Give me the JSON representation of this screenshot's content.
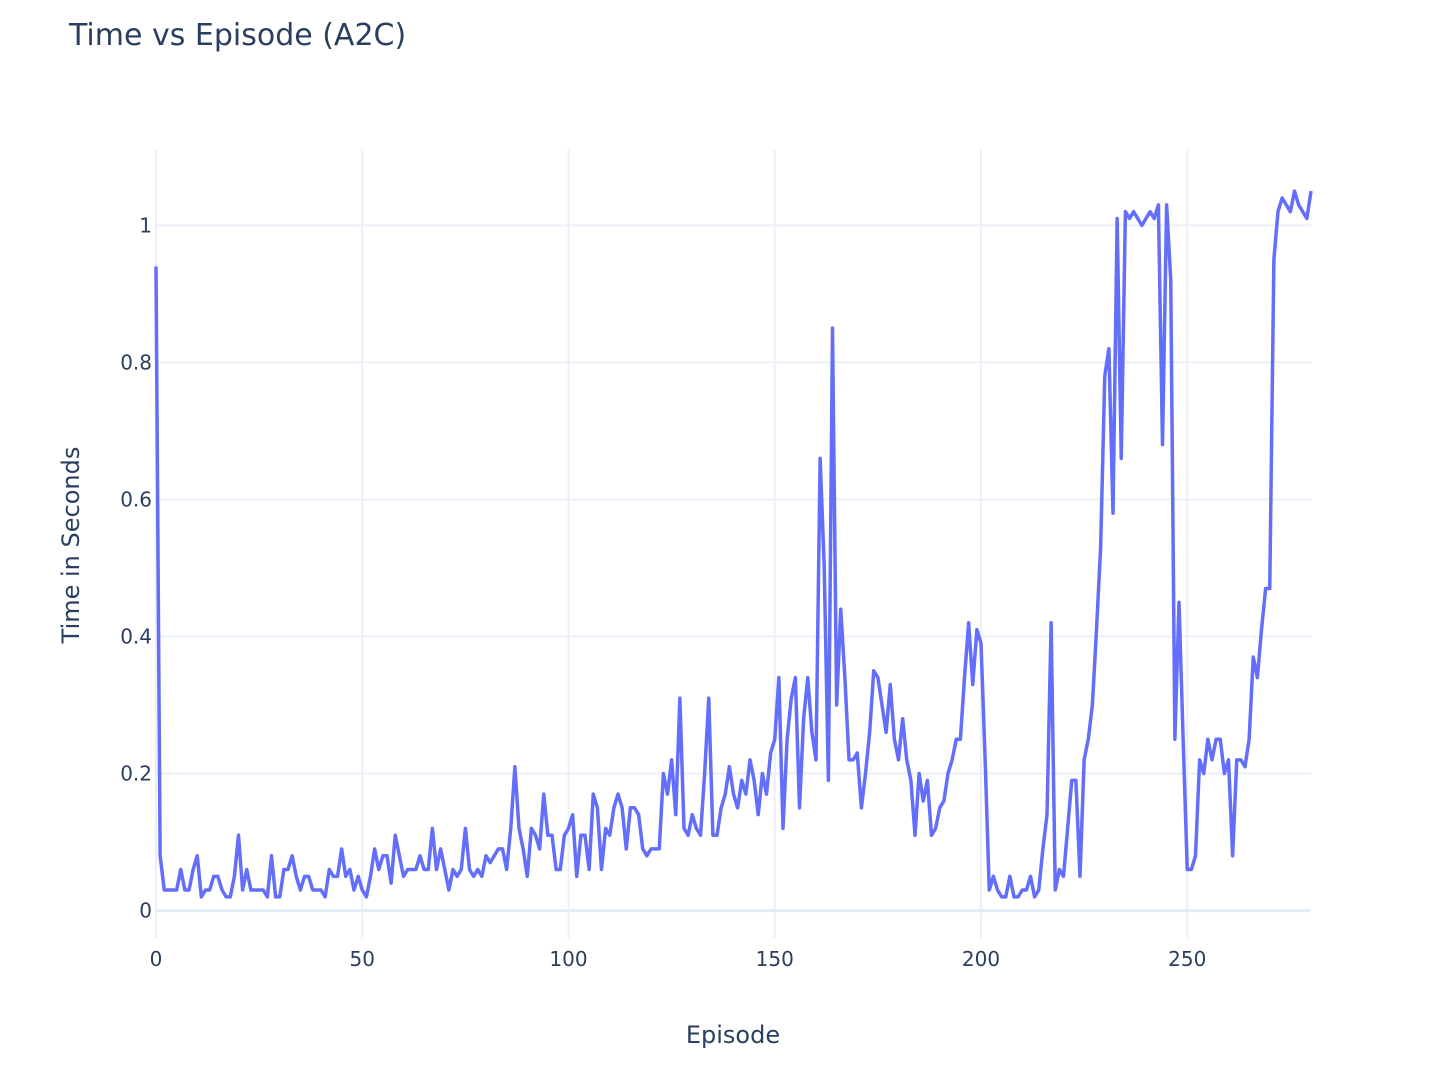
{
  "chart_data": {
    "type": "line",
    "title": "Time vs Episode (A2C)",
    "xlabel": "Episode",
    "ylabel": "Time in Seconds",
    "xlim": [
      0,
      280
    ],
    "ylim": [
      -0.04,
      1.11
    ],
    "grid": true,
    "line_color": "#636efa",
    "x_ticks": [
      0,
      50,
      100,
      150,
      200,
      250
    ],
    "x_tick_labels": [
      "0",
      "50",
      "100",
      "150",
      "200",
      "250"
    ],
    "y_ticks": [
      0,
      0.2,
      0.4,
      0.6,
      0.8,
      1
    ],
    "y_tick_labels": [
      "0",
      "0.2",
      "0.4",
      "0.6",
      "0.8",
      "1"
    ],
    "series": [
      {
        "values": [
          0.94,
          0.08,
          0.03,
          0.03,
          0.03,
          0.03,
          0.06,
          0.03,
          0.03,
          0.06,
          0.08,
          0.02,
          0.03,
          0.03,
          0.05,
          0.05,
          0.03,
          0.02,
          0.02,
          0.05,
          0.11,
          0.03,
          0.06,
          0.03,
          0.03,
          0.03,
          0.03,
          0.02,
          0.08,
          0.02,
          0.02,
          0.06,
          0.06,
          0.08,
          0.05,
          0.03,
          0.05,
          0.05,
          0.03,
          0.03,
          0.03,
          0.02,
          0.06,
          0.05,
          0.05,
          0.09,
          0.05,
          0.06,
          0.03,
          0.05,
          0.03,
          0.02,
          0.05,
          0.09,
          0.06,
          0.08,
          0.08,
          0.04,
          0.11,
          0.08,
          0.05,
          0.06,
          0.06,
          0.06,
          0.08,
          0.06,
          0.06,
          0.12,
          0.06,
          0.09,
          0.06,
          0.03,
          0.06,
          0.05,
          0.06,
          0.12,
          0.06,
          0.05,
          0.06,
          0.05,
          0.08,
          0.07,
          0.08,
          0.09,
          0.09,
          0.06,
          0.12,
          0.21,
          0.12,
          0.09,
          0.05,
          0.12,
          0.11,
          0.09,
          0.17,
          0.11,
          0.11,
          0.06,
          0.06,
          0.11,
          0.12,
          0.14,
          0.05,
          0.11,
          0.11,
          0.06,
          0.17,
          0.15,
          0.06,
          0.12,
          0.11,
          0.15,
          0.17,
          0.15,
          0.09,
          0.15,
          0.15,
          0.14,
          0.09,
          0.08,
          0.09,
          0.09,
          0.09,
          0.2,
          0.17,
          0.22,
          0.14,
          0.31,
          0.12,
          0.11,
          0.14,
          0.12,
          0.11,
          0.2,
          0.31,
          0.11,
          0.11,
          0.15,
          0.17,
          0.21,
          0.17,
          0.15,
          0.19,
          0.17,
          0.22,
          0.19,
          0.14,
          0.2,
          0.17,
          0.23,
          0.25,
          0.34,
          0.12,
          0.25,
          0.31,
          0.34,
          0.15,
          0.28,
          0.34,
          0.26,
          0.22,
          0.66,
          0.5,
          0.19,
          0.85,
          0.3,
          0.44,
          0.34,
          0.22,
          0.22,
          0.23,
          0.15,
          0.2,
          0.26,
          0.35,
          0.34,
          0.3,
          0.26,
          0.33,
          0.25,
          0.22,
          0.28,
          0.22,
          0.19,
          0.11,
          0.2,
          0.16,
          0.19,
          0.11,
          0.12,
          0.15,
          0.16,
          0.2,
          0.22,
          0.25,
          0.25,
          0.34,
          0.42,
          0.33,
          0.41,
          0.39,
          0.22,
          0.03,
          0.05,
          0.03,
          0.02,
          0.02,
          0.05,
          0.02,
          0.02,
          0.03,
          0.03,
          0.05,
          0.02,
          0.03,
          0.09,
          0.14,
          0.42,
          0.03,
          0.06,
          0.05,
          0.12,
          0.19,
          0.19,
          0.05,
          0.22,
          0.25,
          0.3,
          0.41,
          0.53,
          0.78,
          0.82,
          0.58,
          1.01,
          0.66,
          1.02,
          1.01,
          1.02,
          1.01,
          1,
          1.01,
          1.02,
          1.01,
          1.03,
          0.68,
          1.03,
          0.92,
          0.25,
          0.45,
          0.25,
          0.06,
          0.06,
          0.08,
          0.22,
          0.2,
          0.25,
          0.22,
          0.25,
          0.25,
          0.2,
          0.22,
          0.08,
          0.22,
          0.22,
          0.21,
          0.25,
          0.37,
          0.34,
          0.41,
          0.47,
          0.47,
          0.95,
          1.02,
          1.04,
          1.03,
          1.02,
          1.05,
          1.03,
          1.02,
          1.01,
          1.05
        ]
      }
    ]
  }
}
